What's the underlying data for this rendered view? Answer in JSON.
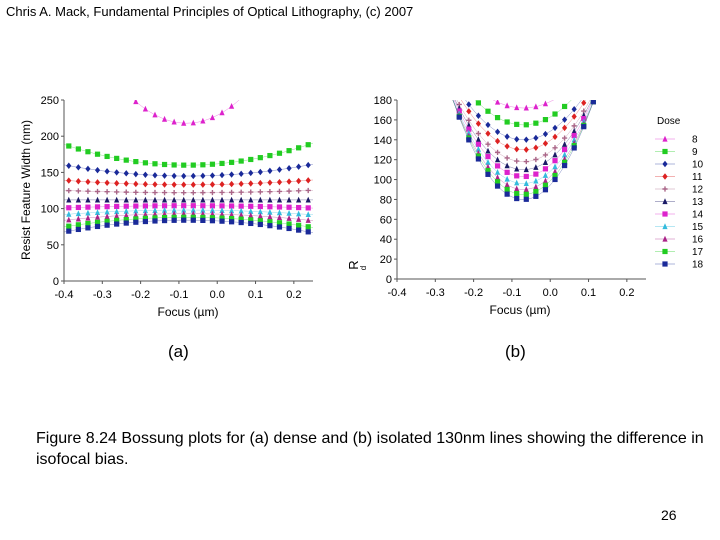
{
  "slide": {
    "header": "Chris A. Mack, Fundamental Principles of Optical Lithography, (c) 2007",
    "label_a": "(a)",
    "label_b": "(b)",
    "caption": "Figure 8.24  Bossung plots for (a) dense and (b) isolated 130nm lines showing the difference in isofocal bias.",
    "page_number": "26"
  },
  "chart_data": [
    {
      "type": "scatter",
      "panel": "(a)",
      "xlabel": "Focus (µm)",
      "ylabel": "Resist Feature Width (nm)",
      "xlim": [
        -0.4,
        0.25
      ],
      "ylim": [
        0,
        250
      ],
      "xticks": [
        -0.4,
        -0.3,
        -0.2,
        -0.1,
        0.0,
        0.1,
        0.2
      ],
      "yticks": [
        0,
        50,
        100,
        150,
        200,
        250
      ],
      "grid": false,
      "series": [
        {
          "dose": 8,
          "color": "#dd22cc",
          "marker": "triangle",
          "cd0": 218,
          "a": 1700,
          "clip": true
        },
        {
          "dose": 9,
          "color": "#22cc22",
          "marker": "square",
          "cd0": 160,
          "a": 280
        },
        {
          "dose": 10,
          "color": "#1a2a99",
          "marker": "diamond",
          "cd0": 145,
          "a": 150
        },
        {
          "dose": 11,
          "color": "#dd2222",
          "marker": "diamond",
          "cd0": 133,
          "a": 60
        },
        {
          "dose": 12,
          "color": "#aa6688",
          "marker": "plus",
          "cd0": 122,
          "a": 30
        },
        {
          "dose": 13,
          "color": "#1a1a66",
          "marker": "triangle",
          "cd0": 112,
          "a": 0
        },
        {
          "dose": 14,
          "color": "#dd22cc",
          "marker": "square",
          "cd0": 104,
          "a": -30
        },
        {
          "dose": 15,
          "color": "#33bbdd",
          "marker": "triangle",
          "cd0": 98,
          "a": -60
        },
        {
          "dose": 16,
          "color": "#aa2288",
          "marker": "triangle",
          "cd0": 93,
          "a": -90
        },
        {
          "dose": 17,
          "color": "#22cc22",
          "marker": "square",
          "cd0": 88,
          "a": -130
        },
        {
          "dose": 18,
          "color": "#1a2a99",
          "marker": "square",
          "cd0": 84,
          "a": -160
        }
      ]
    },
    {
      "type": "scatter",
      "panel": "(b)",
      "xlabel": "Focus (µm)",
      "ylabel": "R",
      "ylabel_sub": "d",
      "xlim": [
        -0.4,
        0.25
      ],
      "ylim": [
        0,
        180
      ],
      "xticks": [
        -0.4,
        -0.3,
        -0.2,
        -0.1,
        0.0,
        0.1,
        0.2
      ],
      "xtick_labels": [
        "-0.4",
        "-0.3",
        "-0.2",
        "-0.1",
        "0.0",
        "0.1",
        "0.2"
      ],
      "yticks": [
        0,
        20,
        40,
        60,
        80,
        100,
        120,
        140,
        160,
        180
      ],
      "grid": false,
      "legend": {
        "title": "Dose",
        "position": "right"
      },
      "series": [
        {
          "dose": 8,
          "color": "#dd22cc",
          "marker": "triangle",
          "cd0": 172,
          "a": 1300
        },
        {
          "dose": 9,
          "color": "#22cc22",
          "marker": "square",
          "cd0": 155,
          "a": 1600
        },
        {
          "dose": 10,
          "color": "#1a2a99",
          "marker": "diamond",
          "cd0": 140,
          "a": 1750
        },
        {
          "dose": 11,
          "color": "#dd2222",
          "marker": "diamond",
          "cd0": 130,
          "a": 1900
        },
        {
          "dose": 12,
          "color": "#aa6688",
          "marker": "plus",
          "cd0": 118,
          "a": 2050
        },
        {
          "dose": 13,
          "color": "#1a1a66",
          "marker": "triangle",
          "cd0": 110,
          "a": 2200
        },
        {
          "dose": 14,
          "color": "#dd22cc",
          "marker": "square",
          "cd0": 103,
          "a": 2350
        },
        {
          "dose": 15,
          "color": "#33bbdd",
          "marker": "triangle",
          "cd0": 96,
          "a": 2500
        },
        {
          "dose": 16,
          "color": "#aa2288",
          "marker": "triangle",
          "cd0": 90,
          "a": 2650
        },
        {
          "dose": 17,
          "color": "#22cc22",
          "marker": "square",
          "cd0": 85,
          "a": 2800
        },
        {
          "dose": 18,
          "color": "#1a2a99",
          "marker": "square",
          "cd0": 80,
          "a": 2950
        }
      ]
    }
  ]
}
